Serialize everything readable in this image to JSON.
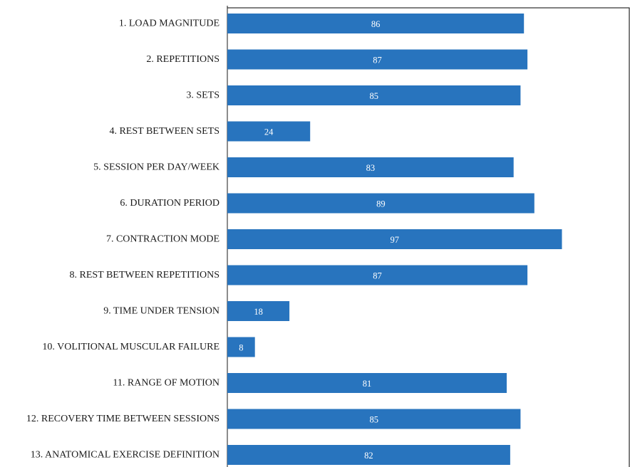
{
  "chart_data": {
    "type": "bar",
    "orientation": "horizontal",
    "categories": [
      "1. LOAD MAGNITUDE",
      "2. REPETITIONS",
      "3. SETS",
      "4. REST BETWEEN SETS",
      "5. SESSION PER DAY/WEEK",
      "6. DURATION PERIOD",
      "7. CONTRACTION MODE",
      "8. REST BETWEEN REPETITIONS",
      "9. TIME UNDER TENSION",
      "10. VOLITIONAL MUSCULAR FAILURE",
      "11. RANGE OF MOTION",
      "12. RECOVERY TIME BETWEEN SESSIONS",
      "13. ANATOMICAL EXERCISE DEFINITION"
    ],
    "values": [
      86,
      87,
      85,
      24,
      83,
      89,
      97,
      87,
      18,
      8,
      81,
      85,
      82
    ],
    "xlim": [
      0,
      118
    ],
    "data_labels": true,
    "grid": false,
    "title": "",
    "xlabel": "",
    "ylabel": "",
    "colors": {
      "bar": "#2874be",
      "label_text": "#ffffff",
      "axis": "#1a1a1a",
      "frame": "#000000"
    }
  }
}
